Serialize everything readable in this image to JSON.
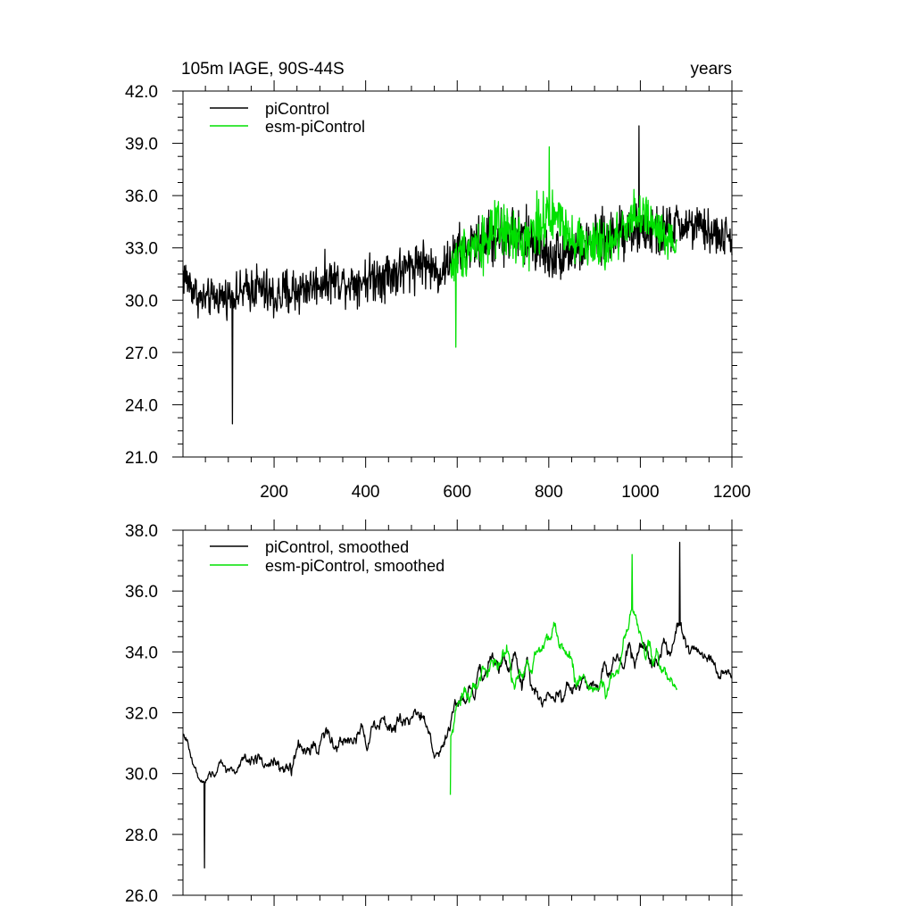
{
  "figure": {
    "title_left": "105m IAGE, 90S-44S",
    "title_right": "years"
  },
  "colors": {
    "piControl": "#000000",
    "esm_piControl": "#00e000"
  },
  "chart_data": [
    {
      "type": "line",
      "title": "105m IAGE, 90S-44S",
      "xlabel": "years",
      "ylabel": "",
      "xlim": [
        1,
        1200
      ],
      "ylim": [
        21.0,
        42.0
      ],
      "x_ticks": [
        200,
        400,
        600,
        800,
        1000,
        1200
      ],
      "x_tick_labels": [
        "200",
        "400",
        "600",
        "800",
        "1000",
        "1200"
      ],
      "y_ticks": [
        21.0,
        24.0,
        27.0,
        30.0,
        33.0,
        36.0,
        39.0,
        42.0
      ],
      "y_tick_labels": [
        "21.0",
        "24.0",
        "27.0",
        "30.0",
        "33.0",
        "36.0",
        "39.0",
        "42.0"
      ],
      "legend_position": "top-left",
      "series": [
        {
          "name": "piControl",
          "x_start": 1,
          "x_end": 1200,
          "anchor_x": [
            1,
            40,
            80,
            120,
            160,
            200,
            240,
            280,
            320,
            360,
            400,
            440,
            480,
            520,
            560,
            600,
            640,
            680,
            720,
            760,
            800,
            840,
            880,
            920,
            960,
            1000,
            1040,
            1080,
            1120,
            1160,
            1200
          ],
          "anchor_mean": [
            31.5,
            30.0,
            30.2,
            30.3,
            30.8,
            30.1,
            30.5,
            30.8,
            31.2,
            31.0,
            31.2,
            31.5,
            31.6,
            32.3,
            31.5,
            32.8,
            33.2,
            33.6,
            33.8,
            33.5,
            32.5,
            32.8,
            33.0,
            33.5,
            34.2,
            34.0,
            33.8,
            34.3,
            34.2,
            33.8,
            33.5
          ],
          "anchor_spread": [
            2.2,
            1.8,
            1.8,
            1.9,
            2.4,
            2.4,
            2.8,
            2.0,
            2.2,
            2.0,
            2.2,
            2.6,
            2.6,
            2.3,
            2.1,
            2.4,
            2.4,
            2.7,
            3.0,
            2.8,
            2.4,
            2.5,
            2.3,
            2.6,
            2.8,
            2.6,
            2.5,
            2.3,
            2.2,
            2.1,
            2.0
          ],
          "min": 22.9,
          "max": 40.0
        },
        {
          "name": "esm-piControl",
          "x_start": 585,
          "x_end": 1080,
          "anchor_x": [
            585,
            620,
            660,
            700,
            740,
            780,
            820,
            860,
            900,
            940,
            980,
            1020,
            1060,
            1080
          ],
          "anchor_mean": [
            31.8,
            33.0,
            33.5,
            34.0,
            33.2,
            34.5,
            34.8,
            33.5,
            33.0,
            33.2,
            35.0,
            34.5,
            33.2,
            33.0
          ],
          "anchor_spread": [
            2.4,
            2.6,
            2.8,
            3.0,
            2.8,
            2.8,
            2.6,
            2.6,
            2.4,
            2.6,
            3.0,
            2.6,
            2.5,
            2.2
          ],
          "min": 27.3,
          "max": 38.8
        }
      ]
    },
    {
      "type": "line",
      "title": "",
      "xlabel": "years",
      "ylabel": "",
      "xlim": [
        1,
        1200
      ],
      "ylim": [
        26.0,
        38.0
      ],
      "x_ticks": [
        200,
        400,
        600,
        800,
        1000,
        1200
      ],
      "x_tick_labels": [],
      "y_ticks": [
        26.0,
        28.0,
        30.0,
        32.0,
        34.0,
        36.0,
        38.0
      ],
      "y_tick_labels": [
        "26.0",
        "28.0",
        "30.0",
        "32.0",
        "34.0",
        "36.0",
        "38.0"
      ],
      "legend_position": "top-left",
      "series": [
        {
          "name": "piControl, smoothed",
          "x_start": 1,
          "x_end": 1200,
          "anchor_x": [
            1,
            40,
            80,
            120,
            160,
            200,
            240,
            280,
            320,
            360,
            400,
            440,
            480,
            520,
            560,
            600,
            640,
            680,
            720,
            760,
            800,
            840,
            880,
            920,
            960,
            1000,
            1040,
            1080,
            1120,
            1160,
            1200
          ],
          "anchor_mean": [
            31.2,
            29.6,
            30.2,
            30.1,
            30.6,
            30.2,
            30.6,
            30.8,
            31.2,
            30.9,
            31.3,
            31.5,
            31.7,
            32.0,
            30.6,
            32.2,
            33.0,
            33.6,
            33.6,
            33.1,
            32.4,
            32.8,
            33.0,
            33.3,
            34.0,
            34.2,
            33.9,
            34.5,
            34.2,
            33.7,
            33.2
          ],
          "anchor_spread": [
            0.9,
            0.6,
            0.7,
            0.8,
            1.1,
            1.0,
            1.4,
            1.0,
            1.1,
            1.0,
            1.0,
            1.3,
            1.2,
            1.0,
            0.8,
            1.1,
            1.1,
            1.2,
            1.4,
            1.2,
            1.0,
            1.2,
            1.0,
            1.2,
            1.3,
            1.3,
            1.2,
            1.1,
            1.0,
            0.9,
            0.8
          ],
          "min": 26.9,
          "max": 37.6
        },
        {
          "name": "esm-piControl, smoothed",
          "x_start": 585,
          "x_end": 1080,
          "anchor_x": [
            585,
            620,
            660,
            700,
            740,
            780,
            820,
            860,
            900,
            940,
            980,
            1020,
            1060,
            1080
          ],
          "anchor_mean": [
            31.5,
            32.8,
            33.4,
            33.8,
            33.0,
            34.4,
            34.5,
            33.2,
            32.8,
            33.0,
            35.2,
            34.2,
            33.0,
            33.2
          ],
          "anchor_spread": [
            1.0,
            1.1,
            1.2,
            1.3,
            1.2,
            1.2,
            1.1,
            1.1,
            1.0,
            1.1,
            1.2,
            1.1,
            1.0,
            0.9
          ],
          "min": 29.3,
          "max": 37.2
        }
      ]
    }
  ]
}
